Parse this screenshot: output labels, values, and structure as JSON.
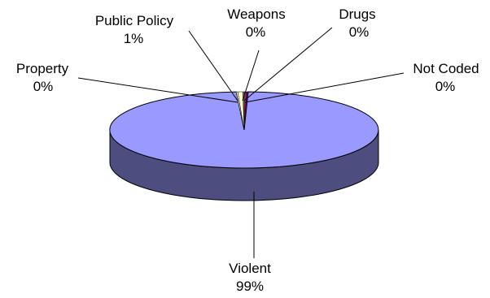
{
  "chart_data": {
    "type": "pie",
    "style": "3d",
    "title": "",
    "slices": [
      {
        "name": "Violent",
        "value": 99,
        "label": "99%",
        "color": "#9999ff",
        "side_color": "#4d4d80"
      },
      {
        "name": "Property",
        "value": 0,
        "label": "0%",
        "color": "#ffffcc",
        "side_color": "#808066"
      },
      {
        "name": "Public Policy",
        "value": 1,
        "label": "1%",
        "color": "#ffffcc",
        "side_color": "#808066"
      },
      {
        "name": "Weapons",
        "value": 0,
        "label": "0%",
        "color": "#a0a0a0",
        "side_color": "#505050"
      },
      {
        "name": "Drugs",
        "value": 0,
        "label": "0%",
        "color": "#993366",
        "side_color": "#4d1a33"
      },
      {
        "name": "Not Coded",
        "value": 0,
        "label": "0%",
        "color": "#660066",
        "side_color": "#330033"
      }
    ]
  }
}
